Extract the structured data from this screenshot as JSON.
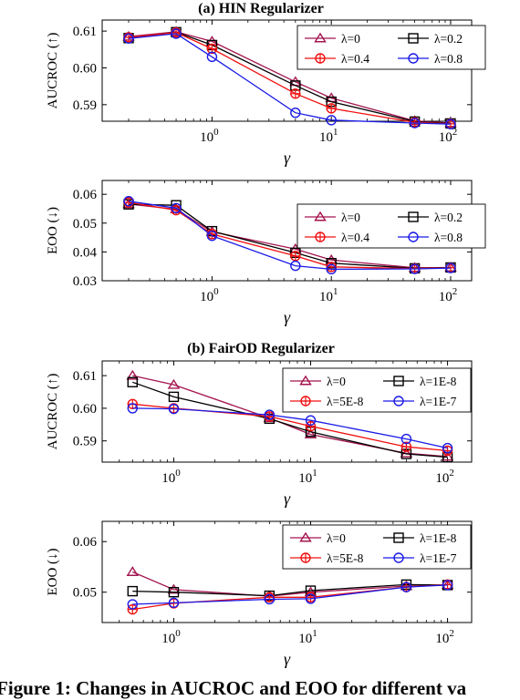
{
  "section_titles": {
    "a": "(a) HIN Regularizer",
    "b": "(b) FairOD Regularizer"
  },
  "caption": "Figure 1: Changes in AUCROC and EOO for different va",
  "colors": {
    "s0": "#a3154f",
    "s1": "#000000",
    "s2": "#f01010",
    "s3": "#1a1ae6"
  },
  "chart_data": [
    {
      "type": "line",
      "section": "(a) HIN Regularizer",
      "xscale": "log",
      "xlabel": "γ",
      "ylabel": "AUCROC (↑)",
      "xlim": [
        0.12,
        150
      ],
      "ylim": [
        0.5855,
        0.613
      ],
      "yticks": [
        0.59,
        0.6,
        0.61
      ],
      "ytick_labels": [
        "0.59",
        "0.60",
        "0.61"
      ],
      "xticks": [
        1,
        10,
        100
      ],
      "xtick_base": "10",
      "xtick_exp": [
        "0",
        "1",
        "2"
      ],
      "legend_position": "top-right",
      "x": [
        0.2,
        0.5,
        1,
        5,
        10,
        50,
        100
      ],
      "series": [
        {
          "name": "λ=0",
          "marker": "triangle",
          "values": [
            0.6085,
            0.6098,
            0.6072,
            0.5962,
            0.5918,
            0.5856,
            0.585
          ]
        },
        {
          "name": "λ=0.2",
          "marker": "square",
          "values": [
            0.6081,
            0.6097,
            0.6062,
            0.5952,
            0.5908,
            0.5854,
            0.5849
          ]
        },
        {
          "name": "λ=0.4",
          "marker": "oplus",
          "values": [
            0.6083,
            0.6096,
            0.6052,
            0.593,
            0.589,
            0.5852,
            0.5848
          ]
        },
        {
          "name": "λ=0.8",
          "marker": "circle",
          "values": [
            0.608,
            0.6093,
            0.603,
            0.5878,
            0.5858,
            0.585,
            0.5847
          ]
        }
      ]
    },
    {
      "type": "line",
      "section": "(a) HIN Regularizer",
      "xscale": "log",
      "xlabel": "γ",
      "ylabel": "EOO (↓)",
      "xlim": [
        0.12,
        150
      ],
      "ylim": [
        0.03,
        0.0648
      ],
      "yticks": [
        0.03,
        0.04,
        0.05,
        0.06
      ],
      "ytick_labels": [
        "0.03",
        "0.04",
        "0.05",
        "0.06"
      ],
      "xticks": [
        1,
        10,
        100
      ],
      "xtick_base": "10",
      "xtick_exp": [
        "0",
        "1",
        "2"
      ],
      "legend_position": "top-right",
      "x": [
        0.2,
        0.5,
        1,
        5,
        10,
        50,
        100
      ],
      "series": [
        {
          "name": "λ=0",
          "marker": "triangle",
          "values": [
            0.0566,
            0.0548,
            0.047,
            0.041,
            0.0372,
            0.0345,
            0.0346
          ]
        },
        {
          "name": "λ=0.2",
          "marker": "square",
          "values": [
            0.0565,
            0.0562,
            0.0472,
            0.0397,
            0.0361,
            0.0343,
            0.0346
          ]
        },
        {
          "name": "λ=0.4",
          "marker": "oplus",
          "values": [
            0.0572,
            0.0545,
            0.0462,
            0.0386,
            0.0348,
            0.0342,
            0.0345
          ]
        },
        {
          "name": "λ=0.8",
          "marker": "circle",
          "values": [
            0.0576,
            0.0552,
            0.0456,
            0.0352,
            0.034,
            0.0341,
            0.0344
          ]
        }
      ]
    },
    {
      "type": "line",
      "section": "(b) FairOD Regularizer",
      "xscale": "log",
      "xlabel": "γ",
      "ylabel": "AUCROC (↑)",
      "xlim": [
        0.3,
        150
      ],
      "ylim": [
        0.5835,
        0.6145
      ],
      "yticks": [
        0.59,
        0.6,
        0.61
      ],
      "ytick_labels": [
        "0.59",
        "0.60",
        "0.61"
      ],
      "xticks": [
        1,
        10,
        100
      ],
      "xtick_base": "10",
      "xtick_exp": [
        "0",
        "1",
        "2"
      ],
      "legend_position": "top-right",
      "x": [
        0.5,
        1,
        5,
        10,
        50,
        100
      ],
      "series": [
        {
          "name": "λ=0",
          "marker": "triangle",
          "values": [
            0.61,
            0.6072,
            0.597,
            0.592,
            0.5862,
            0.5852
          ]
        },
        {
          "name": "λ=1E-8",
          "marker": "square",
          "values": [
            0.608,
            0.6035,
            0.5968,
            0.5928,
            0.586,
            0.585
          ]
        },
        {
          "name": "λ=5E-8",
          "marker": "oplus",
          "values": [
            0.6013,
            0.6,
            0.5975,
            0.5945,
            0.5882,
            0.587
          ]
        },
        {
          "name": "λ=1E-7",
          "marker": "circle",
          "values": [
            0.6,
            0.5998,
            0.598,
            0.5963,
            0.5906,
            0.5878
          ]
        }
      ]
    },
    {
      "type": "line",
      "section": "(b) FairOD Regularizer",
      "xscale": "log",
      "xlabel": "γ",
      "ylabel": "EOO (↓)",
      "xlim": [
        0.3,
        150
      ],
      "ylim": [
        0.044,
        0.064
      ],
      "yticks": [
        0.05,
        0.06
      ],
      "ytick_labels": [
        "0.05",
        "0.06"
      ],
      "xticks": [
        1,
        10,
        100
      ],
      "xtick_base": "10",
      "xtick_exp": [
        "0",
        "1",
        "2"
      ],
      "legend_position": "top-right",
      "x": [
        0.5,
        1,
        5,
        10,
        50,
        100
      ],
      "series": [
        {
          "name": "λ=0",
          "marker": "triangle",
          "values": [
            0.054,
            0.0505,
            0.0492,
            0.05,
            0.0512,
            0.0514
          ]
        },
        {
          "name": "λ=1E-8",
          "marker": "square",
          "values": [
            0.0502,
            0.05,
            0.0493,
            0.0503,
            0.0515,
            0.0514
          ]
        },
        {
          "name": "λ=5E-8",
          "marker": "oplus",
          "values": [
            0.0466,
            0.0478,
            0.049,
            0.049,
            0.051,
            0.0515
          ]
        },
        {
          "name": "λ=1E-7",
          "marker": "circle",
          "values": [
            0.0476,
            0.0479,
            0.0486,
            0.0487,
            0.051,
            0.0514
          ]
        }
      ]
    }
  ]
}
